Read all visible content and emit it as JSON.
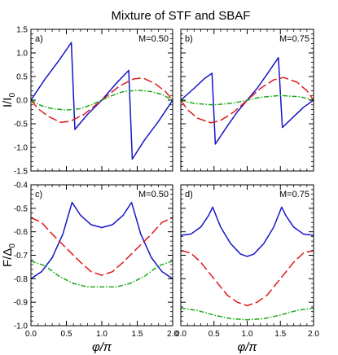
{
  "figure_title": "Mixture of STF and SBAF",
  "colors": {
    "blue": "#1515c8",
    "red": "#e01818",
    "green": "#18a818"
  },
  "chart_data": [
    {
      "type": "line",
      "panel": "a)",
      "annotation": "M=0.50",
      "ylabel": "I/I",
      "ylabel_sub": "0",
      "xlim": [
        0,
        2
      ],
      "ylim": [
        -1.5,
        1.5
      ],
      "yticks": [
        -1.5,
        -1.0,
        -0.5,
        0.0,
        0.5,
        1.0,
        1.5
      ],
      "ytick_labels": [
        "-1.5",
        "-1.0",
        "-0.5",
        "0.0",
        "0.5",
        "1.0",
        "1.5"
      ],
      "series": [
        {
          "color": "blue",
          "dash": "solid",
          "points": [
            [
              0,
              0
            ],
            [
              0.2,
              0.45
            ],
            [
              0.4,
              0.85
            ],
            [
              0.57,
              1.22
            ],
            [
              0.62,
              -0.62
            ],
            [
              0.8,
              -0.3
            ],
            [
              1.0,
              0
            ],
            [
              1.2,
              0.35
            ],
            [
              1.38,
              0.63
            ],
            [
              1.43,
              -1.25
            ],
            [
              1.6,
              -0.85
            ],
            [
              1.8,
              -0.45
            ],
            [
              2.0,
              0
            ]
          ]
        },
        {
          "color": "red",
          "dash": "dashed",
          "points": [
            [
              0,
              0
            ],
            [
              0.1,
              -0.18
            ],
            [
              0.25,
              -0.35
            ],
            [
              0.42,
              -0.47
            ],
            [
              0.55,
              -0.45
            ],
            [
              0.75,
              -0.3
            ],
            [
              1.0,
              0
            ],
            [
              1.25,
              0.3
            ],
            [
              1.45,
              0.45
            ],
            [
              1.58,
              0.47
            ],
            [
              1.75,
              0.35
            ],
            [
              1.9,
              0.18
            ],
            [
              2.0,
              0
            ]
          ]
        },
        {
          "color": "green",
          "dash": "dashdot",
          "points": [
            [
              0,
              0
            ],
            [
              0.15,
              -0.12
            ],
            [
              0.3,
              -0.18
            ],
            [
              0.5,
              -0.21
            ],
            [
              0.7,
              -0.18
            ],
            [
              0.85,
              -0.1
            ],
            [
              1.0,
              0
            ],
            [
              1.15,
              0.1
            ],
            [
              1.3,
              0.18
            ],
            [
              1.5,
              0.21
            ],
            [
              1.7,
              0.18
            ],
            [
              1.85,
              0.12
            ],
            [
              2.0,
              0
            ]
          ]
        }
      ]
    },
    {
      "type": "line",
      "panel": "b)",
      "annotation": "M=0.75",
      "xlim": [
        0,
        2
      ],
      "ylim": [
        -1.5,
        1.5
      ],
      "yticks": [
        -1.5,
        -1.0,
        -0.5,
        0.0,
        0.5,
        1.0,
        1.5
      ],
      "series": [
        {
          "color": "blue",
          "dash": "solid",
          "points": [
            [
              0,
              0
            ],
            [
              0.2,
              0.25
            ],
            [
              0.35,
              0.45
            ],
            [
              0.47,
              0.57
            ],
            [
              0.52,
              -0.93
            ],
            [
              0.7,
              -0.55
            ],
            [
              0.85,
              -0.25
            ],
            [
              1.0,
              0
            ],
            [
              1.15,
              0.25
            ],
            [
              1.3,
              0.55
            ],
            [
              1.47,
              0.9
            ],
            [
              1.53,
              -0.58
            ],
            [
              1.7,
              -0.35
            ],
            [
              1.85,
              -0.15
            ],
            [
              2.0,
              0
            ]
          ]
        },
        {
          "color": "red",
          "dash": "dashed",
          "points": [
            [
              0,
              0
            ],
            [
              0.1,
              -0.2
            ],
            [
              0.25,
              -0.38
            ],
            [
              0.45,
              -0.48
            ],
            [
              0.6,
              -0.43
            ],
            [
              0.8,
              -0.25
            ],
            [
              1.0,
              0
            ],
            [
              1.2,
              0.25
            ],
            [
              1.4,
              0.43
            ],
            [
              1.55,
              0.48
            ],
            [
              1.75,
              0.38
            ],
            [
              1.9,
              0.2
            ],
            [
              2.0,
              0
            ]
          ]
        },
        {
          "color": "green",
          "dash": "dashdot",
          "points": [
            [
              0,
              0
            ],
            [
              0.2,
              -0.07
            ],
            [
              0.5,
              -0.1
            ],
            [
              0.8,
              -0.06
            ],
            [
              1.0,
              0
            ],
            [
              1.2,
              0.06
            ],
            [
              1.5,
              0.1
            ],
            [
              1.8,
              0.07
            ],
            [
              2.0,
              0
            ]
          ]
        }
      ]
    },
    {
      "type": "line",
      "panel": "c)",
      "annotation": "M=0.50",
      "ylabel": "F/Δ",
      "ylabel_sub": "0",
      "xlabel": "φ/π",
      "xlim": [
        0,
        2
      ],
      "ylim": [
        -1.0,
        -0.4
      ],
      "xticks": [
        0,
        0.5,
        1.0,
        1.5,
        2.0
      ],
      "xtick_labels": [
        "0.0",
        "0.5",
        "1.0",
        "1.5",
        "2.0"
      ],
      "yticks": [
        -1.0,
        -0.9,
        -0.8,
        -0.7,
        -0.6,
        -0.5,
        -0.4
      ],
      "ytick_labels": [
        "-1.0",
        "-0.9",
        "-0.8",
        "-0.7",
        "-0.6",
        "-0.5",
        "-0.4"
      ],
      "series": [
        {
          "color": "blue",
          "dash": "solid",
          "points": [
            [
              0,
              -0.8
            ],
            [
              0.15,
              -0.77
            ],
            [
              0.3,
              -0.71
            ],
            [
              0.45,
              -0.61
            ],
            [
              0.58,
              -0.475
            ],
            [
              0.7,
              -0.53
            ],
            [
              0.85,
              -0.57
            ],
            [
              1.0,
              -0.582
            ],
            [
              1.15,
              -0.57
            ],
            [
              1.3,
              -0.53
            ],
            [
              1.42,
              -0.475
            ],
            [
              1.55,
              -0.61
            ],
            [
              1.7,
              -0.71
            ],
            [
              1.85,
              -0.77
            ],
            [
              2.0,
              -0.8
            ]
          ]
        },
        {
          "color": "red",
          "dash": "dashed",
          "points": [
            [
              0,
              -0.54
            ],
            [
              0.15,
              -0.56
            ],
            [
              0.3,
              -0.61
            ],
            [
              0.5,
              -0.67
            ],
            [
              0.7,
              -0.73
            ],
            [
              0.85,
              -0.77
            ],
            [
              1.0,
              -0.785
            ],
            [
              1.15,
              -0.77
            ],
            [
              1.3,
              -0.73
            ],
            [
              1.5,
              -0.67
            ],
            [
              1.7,
              -0.61
            ],
            [
              1.85,
              -0.56
            ],
            [
              2.0,
              -0.54
            ]
          ]
        },
        {
          "color": "green",
          "dash": "dashdot",
          "points": [
            [
              0,
              -0.725
            ],
            [
              0.2,
              -0.745
            ],
            [
              0.4,
              -0.79
            ],
            [
              0.6,
              -0.82
            ],
            [
              0.8,
              -0.835
            ],
            [
              1.0,
              -0.835
            ],
            [
              1.2,
              -0.835
            ],
            [
              1.4,
              -0.82
            ],
            [
              1.6,
              -0.79
            ],
            [
              1.8,
              -0.745
            ],
            [
              2.0,
              -0.725
            ]
          ]
        }
      ]
    },
    {
      "type": "line",
      "panel": "d)",
      "annotation": "M=0.75",
      "xlabel": "φ/π",
      "xlim": [
        0,
        2
      ],
      "ylim": [
        -1.0,
        -0.4
      ],
      "xticks": [
        0,
        0.5,
        1.0,
        1.5,
        2.0
      ],
      "xtick_labels": [
        "0.0",
        "0.5",
        "1.0",
        "1.5",
        "2.0"
      ],
      "yticks": [
        -1.0,
        -0.9,
        -0.8,
        -0.7,
        -0.6,
        -0.5,
        -0.4
      ],
      "series": [
        {
          "color": "blue",
          "dash": "solid",
          "points": [
            [
              0,
              -0.615
            ],
            [
              0.15,
              -0.61
            ],
            [
              0.3,
              -0.58
            ],
            [
              0.42,
              -0.53
            ],
            [
              0.48,
              -0.495
            ],
            [
              0.6,
              -0.58
            ],
            [
              0.75,
              -0.65
            ],
            [
              0.9,
              -0.695
            ],
            [
              1.0,
              -0.705
            ],
            [
              1.1,
              -0.695
            ],
            [
              1.25,
              -0.65
            ],
            [
              1.4,
              -0.58
            ],
            [
              1.52,
              -0.495
            ],
            [
              1.58,
              -0.53
            ],
            [
              1.7,
              -0.58
            ],
            [
              1.85,
              -0.61
            ],
            [
              2.0,
              -0.615
            ]
          ]
        },
        {
          "color": "red",
          "dash": "dashed",
          "points": [
            [
              0,
              -0.68
            ],
            [
              0.15,
              -0.69
            ],
            [
              0.3,
              -0.73
            ],
            [
              0.5,
              -0.8
            ],
            [
              0.7,
              -0.87
            ],
            [
              0.85,
              -0.9
            ],
            [
              1.0,
              -0.915
            ],
            [
              1.15,
              -0.9
            ],
            [
              1.3,
              -0.87
            ],
            [
              1.5,
              -0.8
            ],
            [
              1.7,
              -0.73
            ],
            [
              1.85,
              -0.69
            ],
            [
              2.0,
              -0.68
            ]
          ]
        },
        {
          "color": "green",
          "dash": "dashdot",
          "points": [
            [
              0,
              -0.925
            ],
            [
              0.25,
              -0.935
            ],
            [
              0.5,
              -0.955
            ],
            [
              0.75,
              -0.97
            ],
            [
              1.0,
              -0.975
            ],
            [
              1.25,
              -0.97
            ],
            [
              1.5,
              -0.955
            ],
            [
              1.75,
              -0.935
            ],
            [
              2.0,
              -0.925
            ]
          ]
        }
      ]
    }
  ]
}
